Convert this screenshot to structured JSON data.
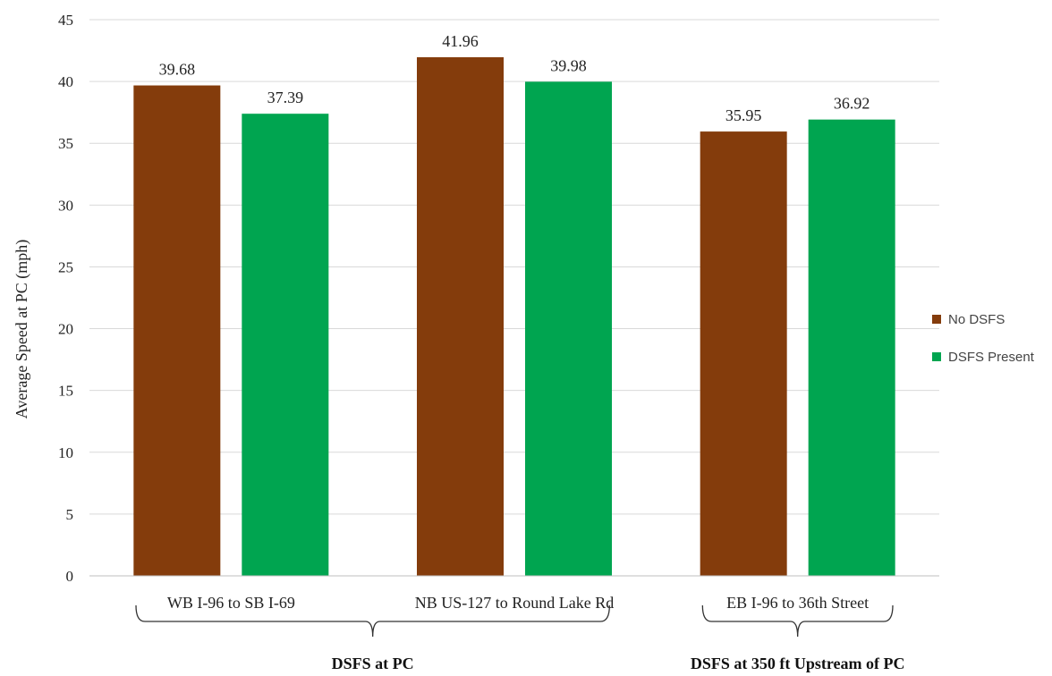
{
  "chart_data": {
    "type": "bar",
    "categories": [
      "WB I-96 to SB I-69",
      "NB US-127 to Round Lake Rd",
      "EB I-96 to 36th Street"
    ],
    "series": [
      {
        "name": "No DSFS",
        "color": "#843C0C",
        "values": [
          39.68,
          41.96,
          35.95
        ],
        "labels": [
          "39.68",
          "41.96",
          "35.95"
        ]
      },
      {
        "name": "DSFS Present",
        "color": "#00A550",
        "values": [
          37.39,
          39.98,
          36.92
        ],
        "labels": [
          "37.39",
          "39.98",
          "36.92"
        ]
      }
    ],
    "title": "",
    "xlabel": "",
    "ylabel": "Average Speed at PC (mph)",
    "ylim": [
      0,
      45
    ],
    "yticks": [
      "0",
      "5",
      "10",
      "15",
      "20",
      "25",
      "30",
      "35",
      "40",
      "45"
    ],
    "grid": true,
    "legend_position": "right",
    "groups": [
      {
        "label": "DSFS at PC",
        "categories": [
          0,
          1
        ]
      },
      {
        "label": "DSFS at 350 ft Upstream of PC",
        "categories": [
          2
        ]
      }
    ]
  }
}
